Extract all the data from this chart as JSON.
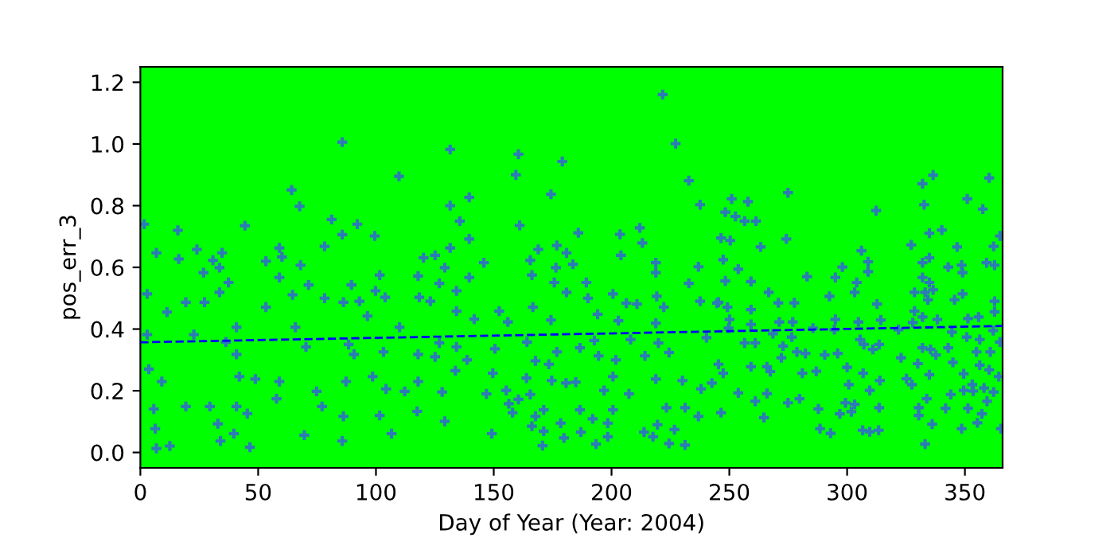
{
  "chart_data": {
    "type": "scatter",
    "xlabel": "Day of Year (Year: 2004)",
    "ylabel": "pos_err_3",
    "xlim": [
      0,
      366
    ],
    "ylim": [
      -0.05,
      1.25
    ],
    "xticks": [
      0,
      50,
      100,
      150,
      200,
      250,
      300,
      350
    ],
    "yticks": [
      {
        "value": 0,
        "label": "0.0"
      },
      0.2,
      0.4,
      0.6,
      0.8,
      {
        "value": 1,
        "label": "1.0"
      },
      1.2
    ],
    "grid": false,
    "legend": false,
    "series": [
      {
        "color": "#2c7bb6",
        "marker": "cross",
        "x": [
          85.7,
          109.8,
          64.2,
          67.6,
          1.6,
          15.9,
          44.4,
          81.2,
          92.1,
          99.5,
          2.9,
          2.9,
          6.8,
          16.3,
          24.0,
          33.6,
          34.7,
          30.8,
          26.8,
          37.4,
          33.6,
          11.3,
          19.3,
          27.2,
          40.8,
          36.3,
          40.8,
          42.0,
          40.8,
          39.7,
          6.8,
          12.5,
          6.3,
          5.7,
          9.1,
          3.6,
          19.3,
          29.5,
          22.7,
          32.9,
          34.0,
          46.5,
          48.8,
          45.4,
          53.3,
          53.3,
          59.0,
          60.1,
          59.0,
          64.6,
          65.8,
          59.0,
          57.8,
          68.0,
          71.4,
          70.3,
          74.8,
          69.6,
          78.2,
          78.2,
          85.7,
          89.6,
          86.2,
          93.0,
          88.4,
          90.7,
          87.3,
          86.2,
          85.7,
          77.1,
          96.4,
          101.6,
          99.8,
          103.9,
          103.2,
          98.6,
          101.6,
          106.6,
          104.3,
          110.0,
          117.9,
          118.4,
          117.9,
          117.9,
          117.5,
          112.2,
          120.2,
          221.7,
          227.2,
          131.5,
          160.5,
          179.1,
          159.4,
          232.8,
          174.3,
          131.5,
          237.6,
          139.6,
          135.6,
          161.0,
          212.0,
          185.9,
          203.6,
          131.5,
          139.6,
          125.1,
          129.2,
          176.8,
          180.9,
          204.0,
          213.1,
          236.9,
          218.8,
          218.8,
          165.5,
          168.9,
          176.4,
          183.6,
          166.2,
          175.7,
          189.3,
          126.9,
          134.2,
          139.6,
          145.8,
          180.9,
          200.6,
          219.2,
          232.8,
          123.1,
          134.2,
          152.3,
          166.6,
          190.0,
          206.3,
          210.8,
          222.2,
          237.6,
          244.8,
          141.7,
          156.0,
          174.3,
          194.1,
          202.9,
          218.8,
          126.9,
          134.2,
          150.5,
          164.1,
          176.8,
          186.6,
          192.7,
          208.1,
          219.9,
          240.3,
          125.1,
          138.7,
          167.7,
          173.4,
          194.5,
          201.8,
          214.2,
          224.4,
          133.7,
          149.6,
          163.9,
          174.6,
          184.8,
          200.6,
          218.8,
          230.1,
          242.6,
          128.1,
          146.9,
          155.3,
          165.5,
          180.7,
          196.8,
          207.4,
          238.0,
          156.4,
          160.5,
          171.2,
          186.6,
          200.6,
          223.3,
          231.2,
          158.0,
          167.7,
          192.0,
          236.9,
          129.2,
          166.2,
          178.4,
          198.4,
          219.5,
          149.2,
          171.2,
          179.8,
          187.0,
          198.4,
          213.8,
          217.6,
          226.7,
          170.7,
          193.4,
          224.4,
          231.2,
          274.9,
          336.5,
          332.0,
          360.3,
          332.7,
          312.3,
          251.0,
          257.9,
          248.3,
          252.6,
          256.5,
          261.3,
          351.0,
          357.6,
          246.5,
          250.4,
          274.2,
          263.3,
          334.9,
          340.2,
          327.2,
          306.1,
          362.2,
          364.9,
          247.4,
          308.9,
          346.7,
          253.8,
          248.3,
          259.2,
          283.0,
          295.0,
          298.0,
          304.1,
          303.2,
          308.9,
          332.0,
          334.9,
          332.0,
          334.9,
          333.1,
          334.3,
          342.9,
          348.6,
          359.2,
          362.6,
          349.0,
          245.4,
          249.2,
          259.2,
          266.7,
          270.8,
          277.6,
          292.5,
          312.7,
          328.6,
          336.5,
          345.6,
          349.0,
          362.6,
          362.6,
          328.6,
          332.0,
          250.1,
          259.2,
          271.2,
          276.9,
          295.0,
          304.8,
          314.3,
          327.9,
          338.3,
          355.8,
          249.7,
          268.5,
          276.5,
          285.5,
          294.6,
          321.8,
          344.5,
          351.3,
          362.0,
          256.5,
          261.0,
          272.8,
          278.7,
          282.3,
          290.5,
          296.0,
          305.5,
          307.1,
          310.9,
          313.6,
          332.0,
          335.4,
          342.9,
          350.8,
          356.3,
          360.8,
          364.9,
          245.4,
          259.2,
          266.0,
          272.1,
          322.9,
          330.0,
          337.7,
          344.9,
          354.9,
          356.3,
          247.4,
          267.4,
          281.0,
          286.9,
          300.0,
          306.8,
          313.9,
          325.2,
          334.9,
          349.5,
          360.3,
          364.4,
          300.7,
          309.6,
          327.5,
          349.5,
          353.1,
          358.1,
          362.2,
          253.8,
          261.0,
          266.0,
          274.9,
          279.8,
          299.3,
          303.2,
          333.8,
          344.0,
          353.5,
          359.4,
          246.5,
          264.7,
          287.8,
          296.9,
          301.8,
          313.6,
          330.4,
          341.8,
          351.3,
          357.2,
          330.4,
          355.3,
          288.5,
          293.0,
          306.6,
          309.6,
          313.4,
          336.1,
          348.6,
          365.3,
          333.1
        ],
        "values": [
          1.006,
          0.895,
          0.851,
          0.798,
          0.74,
          0.72,
          0.735,
          0.755,
          0.74,
          0.702,
          0.514,
          0.382,
          0.647,
          0.627,
          0.658,
          0.599,
          0.647,
          0.623,
          0.583,
          0.551,
          0.519,
          0.455,
          0.487,
          0.487,
          0.406,
          0.358,
          0.318,
          0.246,
          0.149,
          0.061,
          0.013,
          0.021,
          0.077,
          0.141,
          0.23,
          0.27,
          0.149,
          0.149,
          0.382,
          0.093,
          0.037,
          0.017,
          0.238,
          0.126,
          0.471,
          0.62,
          0.663,
          0.634,
          0.567,
          0.511,
          0.406,
          0.23,
          0.174,
          0.607,
          0.543,
          0.342,
          0.198,
          0.056,
          0.5,
          0.668,
          0.706,
          0.543,
          0.487,
          0.49,
          0.35,
          0.318,
          0.23,
          0.117,
          0.037,
          0.149,
          0.442,
          0.575,
          0.524,
          0.503,
          0.326,
          0.246,
          0.12,
          0.061,
          0.206,
          0.406,
          0.572,
          0.503,
          0.318,
          0.23,
          0.133,
          0.198,
          0.631,
          1.16,
          1.001,
          0.982,
          0.967,
          0.943,
          0.9,
          0.881,
          0.837,
          0.8,
          0.803,
          0.827,
          0.75,
          0.736,
          0.728,
          0.712,
          0.707,
          0.663,
          0.692,
          0.639,
          0.599,
          0.671,
          0.647,
          0.639,
          0.679,
          0.602,
          0.615,
          0.583,
          0.623,
          0.658,
          0.599,
          0.61,
          0.575,
          0.551,
          0.551,
          0.548,
          0.524,
          0.567,
          0.615,
          0.519,
          0.514,
          0.506,
          0.548,
          0.49,
          0.458,
          0.458,
          0.471,
          0.5,
          0.484,
          0.481,
          0.471,
          0.49,
          0.484,
          0.432,
          0.423,
          0.429,
          0.448,
          0.427,
          0.419,
          0.355,
          0.342,
          0.336,
          0.358,
          0.326,
          0.339,
          0.363,
          0.366,
          0.355,
          0.372,
          0.31,
          0.3,
          0.297,
          0.286,
          0.313,
          0.3,
          0.313,
          0.324,
          0.265,
          0.257,
          0.241,
          0.233,
          0.228,
          0.246,
          0.238,
          0.233,
          0.225,
          0.196,
          0.19,
          0.201,
          0.188,
          0.225,
          0.201,
          0.19,
          0.206,
          0.158,
          0.172,
          0.138,
          0.138,
          0.138,
          0.145,
          0.145,
          0.129,
          0.117,
          0.109,
          0.117,
          0.101,
          0.085,
          0.095,
          0.095,
          0.09,
          0.061,
          0.069,
          0.047,
          0.066,
          0.051,
          0.066,
          0.051,
          0.074,
          0.022,
          0.027,
          0.029,
          0.024,
          0.842,
          0.899,
          0.871,
          0.89,
          0.803,
          0.784,
          0.822,
          0.813,
          0.779,
          0.765,
          0.75,
          0.75,
          0.822,
          0.789,
          0.695,
          0.687,
          0.692,
          0.666,
          0.711,
          0.721,
          0.673,
          0.654,
          0.668,
          0.702,
          0.625,
          0.618,
          0.666,
          0.594,
          0.556,
          0.554,
          0.57,
          0.567,
          0.601,
          0.551,
          0.519,
          0.586,
          0.615,
          0.631,
          0.567,
          0.551,
          0.519,
          0.495,
          0.601,
          0.607,
          0.615,
          0.607,
          0.583,
          0.487,
          0.471,
          0.463,
          0.519,
          0.485,
          0.485,
          0.506,
          0.481,
          0.519,
          0.527,
          0.495,
          0.514,
          0.49,
          0.456,
          0.458,
          0.439,
          0.431,
          0.415,
          0.423,
          0.423,
          0.431,
          0.423,
          0.429,
          0.421,
          0.431,
          0.439,
          0.403,
          0.385,
          0.374,
          0.403,
          0.398,
          0.398,
          0.39,
          0.434,
          0.395,
          0.355,
          0.355,
          0.345,
          0.326,
          0.321,
          0.316,
          0.321,
          0.366,
          0.35,
          0.334,
          0.35,
          0.339,
          0.334,
          0.339,
          0.374,
          0.366,
          0.326,
          0.358,
          0.286,
          0.278,
          0.278,
          0.307,
          0.307,
          0.288,
          0.316,
          0.292,
          0.326,
          0.283,
          0.257,
          0.262,
          0.257,
          0.263,
          0.276,
          0.257,
          0.233,
          0.239,
          0.252,
          0.255,
          0.268,
          0.246,
          0.22,
          0.201,
          0.22,
          0.201,
          0.22,
          0.209,
          0.196,
          0.193,
          0.166,
          0.191,
          0.161,
          0.174,
          0.161,
          0.156,
          0.174,
          0.188,
          0.199,
          0.166,
          0.129,
          0.113,
          0.141,
          0.125,
          0.132,
          0.145,
          0.145,
          0.143,
          0.143,
          0.125,
          0.12,
          0.096,
          0.077,
          0.062,
          0.072,
          0.067,
          0.072,
          0.092,
          0.077,
          0.077,
          0.027
        ]
      },
      {
        "type": "line",
        "color": "#0000ff",
        "line_style": "dashed",
        "x": [
          0,
          366
        ],
        "values": [
          0.357,
          0.41
        ]
      }
    ]
  }
}
